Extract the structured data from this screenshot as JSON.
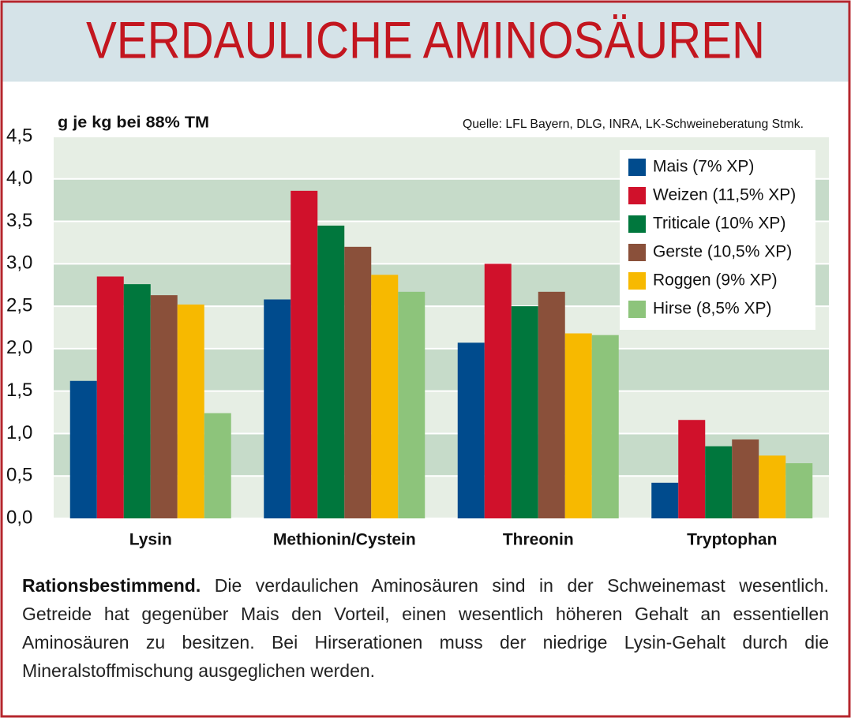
{
  "chart_data": {
    "type": "bar",
    "title": "VERDAULICHE AMINOSÄUREN",
    "y_label": "g je kg bei 88% TM",
    "source": "Quelle: LFL Bayern, DLG, INRA, LK-Schweineberatung Stmk.",
    "categories": [
      "Lysin",
      "Methionin/Cystein",
      "Threonin",
      "Tryptophan"
    ],
    "series": [
      {
        "name": "Mais (7% XP)",
        "color": "#004b8d",
        "values": [
          1.62,
          2.58,
          2.07,
          0.42
        ]
      },
      {
        "name": "Weizen (11,5% XP)",
        "color": "#d0112b",
        "values": [
          2.85,
          3.86,
          3.0,
          1.16
        ]
      },
      {
        "name": "Triticale (10% XP)",
        "color": "#00773d",
        "values": [
          2.76,
          3.45,
          2.5,
          0.85
        ]
      },
      {
        "name": "Gerste (10,5% XP)",
        "color": "#8a503a",
        "values": [
          2.63,
          3.2,
          2.67,
          0.93
        ]
      },
      {
        "name": "Roggen (9% XP)",
        "color": "#f7b900",
        "values": [
          2.52,
          2.87,
          2.18,
          0.74
        ]
      },
      {
        "name": "Hirse (8,5% XP)",
        "color": "#8dc47b",
        "values": [
          1.24,
          2.67,
          2.16,
          0.65
        ]
      }
    ],
    "ylim": [
      0,
      4.5
    ],
    "yticks": [
      {
        "value": 0,
        "label": "0,0"
      },
      {
        "value": 0.5,
        "label": "0,5"
      },
      {
        "value": 1,
        "label": "1,0"
      },
      {
        "value": 1.5,
        "label": "1,5"
      },
      {
        "value": 2,
        "label": "2,0"
      },
      {
        "value": 2.5,
        "label": "2,5"
      },
      {
        "value": 3,
        "label": "3,0"
      },
      {
        "value": 3.5,
        "label": "3,5"
      },
      {
        "value": 4,
        "label": "4,0"
      },
      {
        "value": 4.5,
        "label": "4,5"
      }
    ],
    "grid": true,
    "legend_position": "top-right"
  },
  "caption": {
    "lead": "Rationsbestimmend.",
    "text": "Die verdaulichen Aminosäuren sind in der Schweinemast wesentlich. Getreide hat gegenüber Mais den Vorteil, einen wesentlich höheren Gehalt an essentiellen Aminosäuren zu besitzen. Bei Hirserationen muss der niedrige Lysin-Gehalt durch die Mineralstoffmischung ausgeglichen werden."
  }
}
